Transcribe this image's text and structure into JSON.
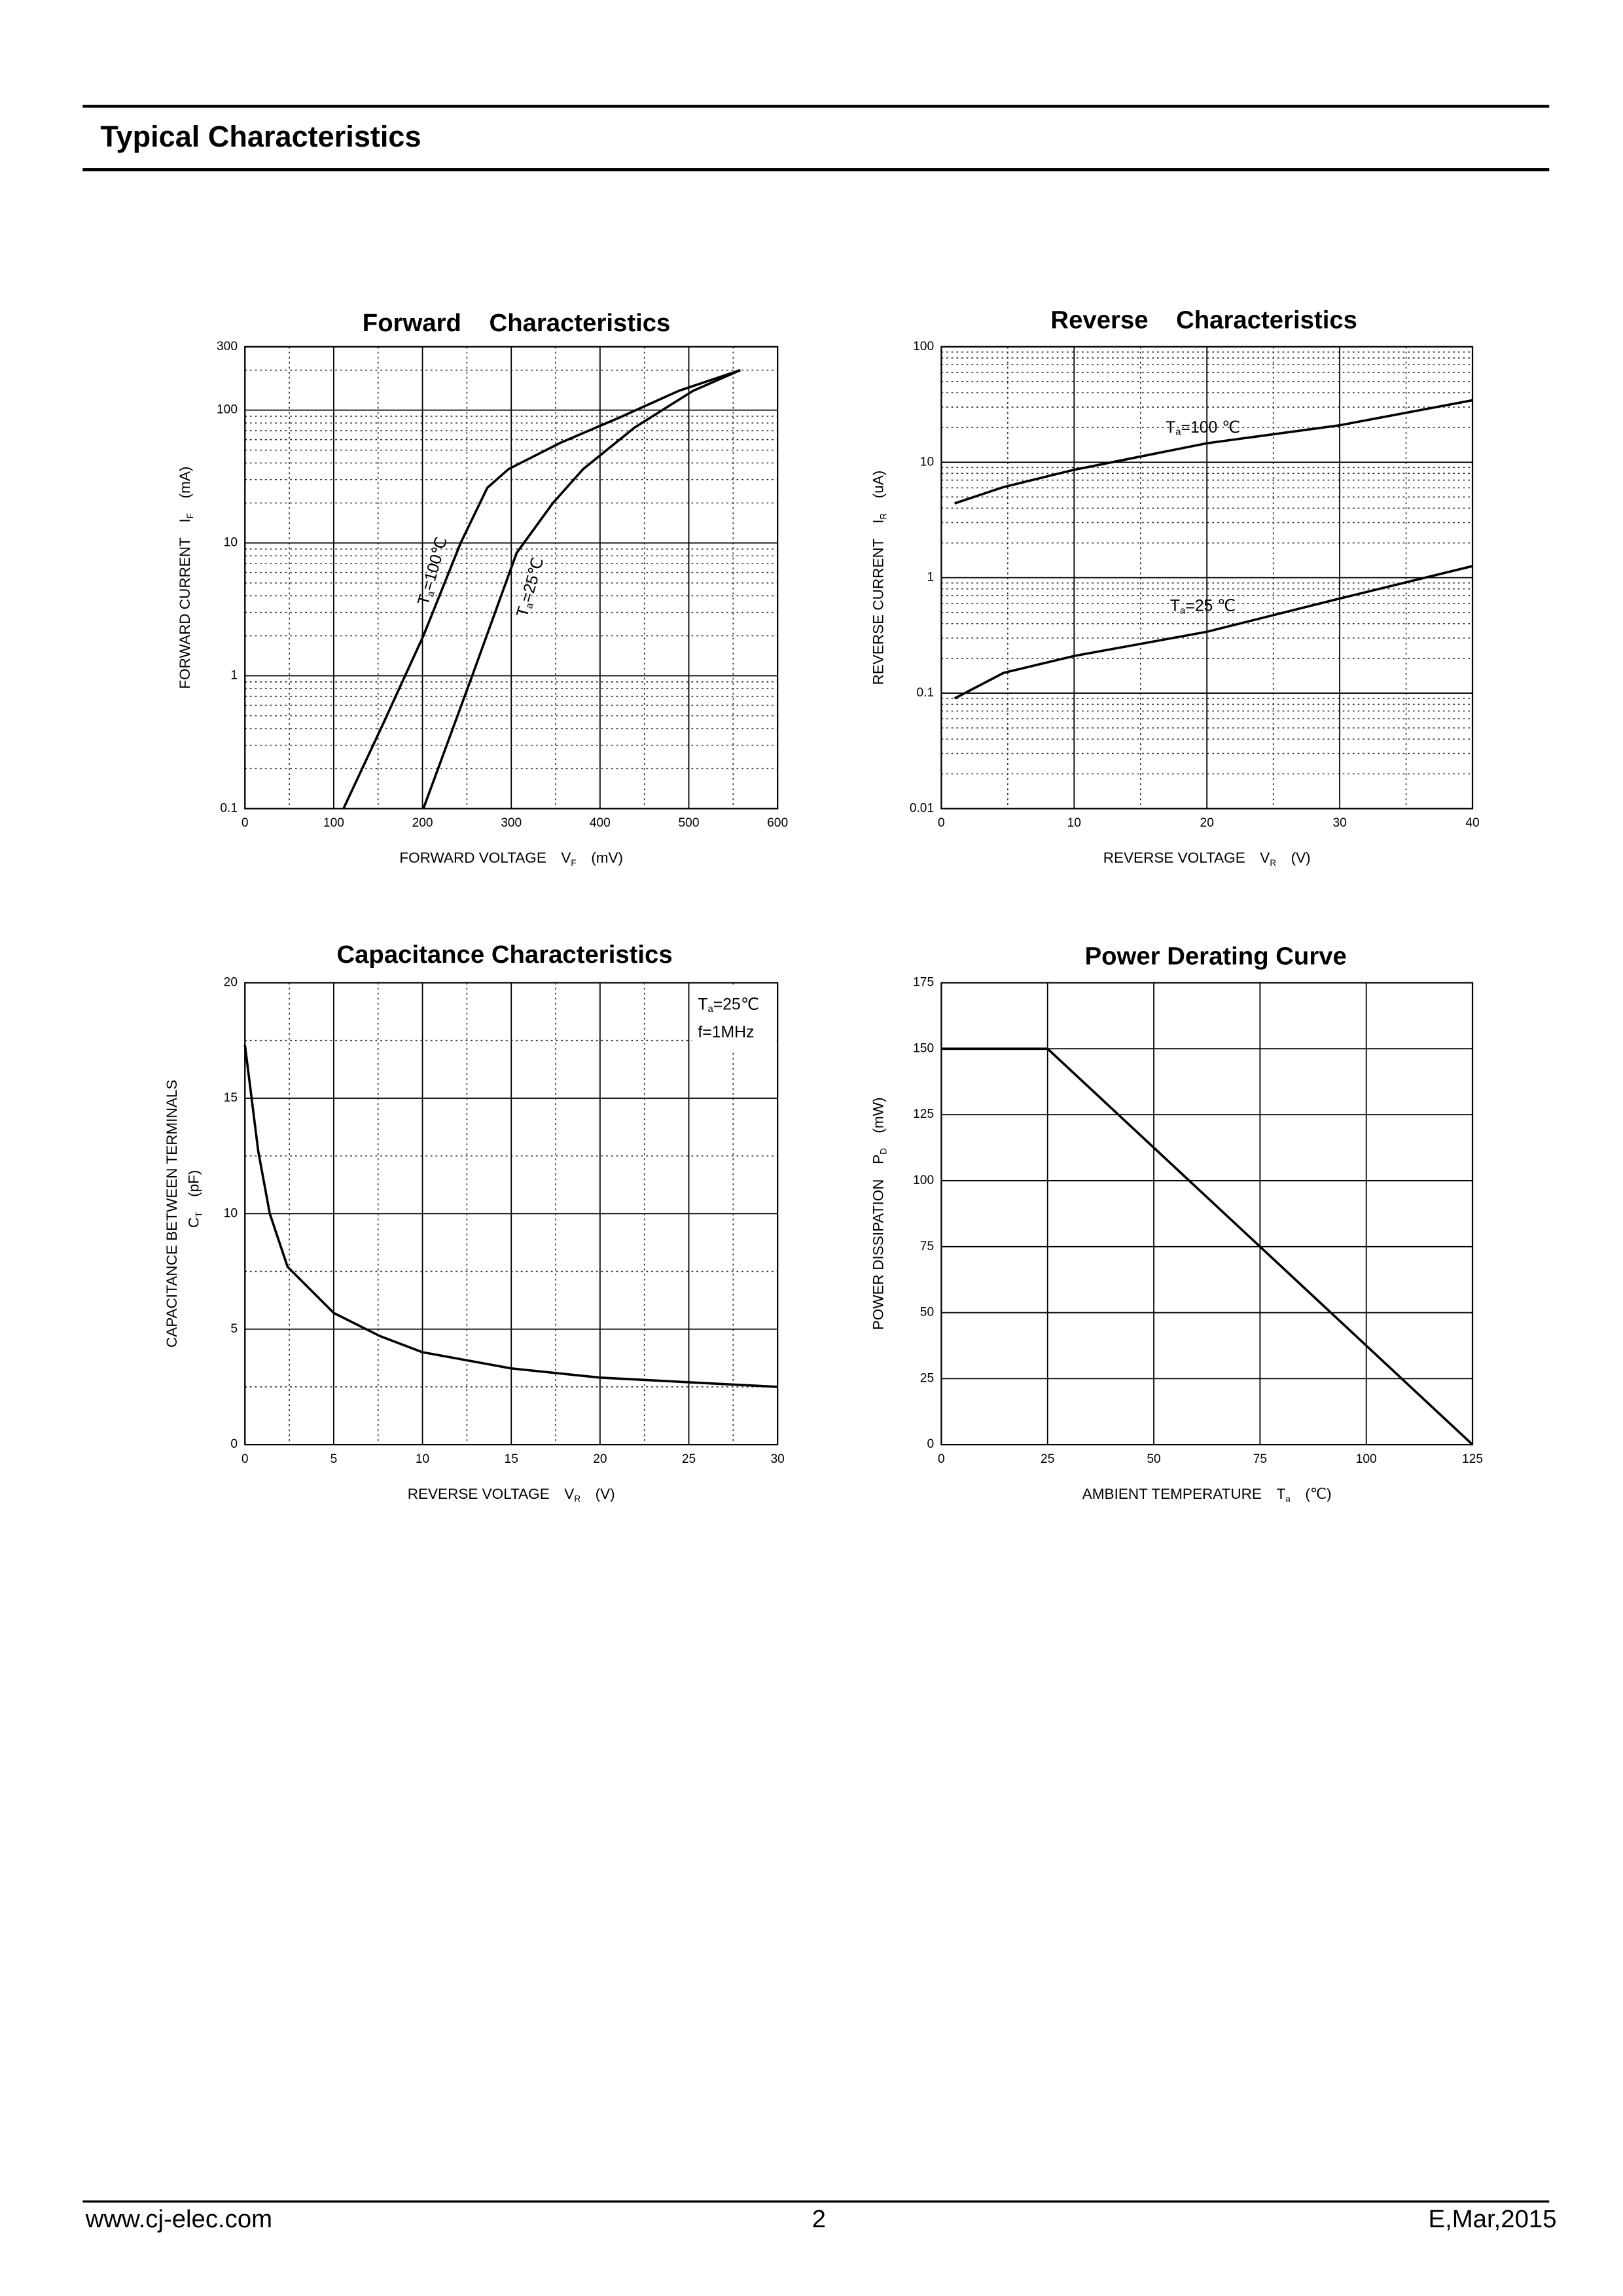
{
  "header": {
    "title": "Typical Characteristics"
  },
  "chart_data": [
    {
      "type": "line",
      "title": "Forward    Characteristics",
      "xlabel": {
        "text": "FORWARD VOLTAGE",
        "symbol": "V",
        "sub": "F",
        "unit": "(mV)"
      },
      "ylabel": {
        "text": "FORWARD CURRENT",
        "symbol": "I",
        "sub": "F",
        "unit": "(mA)"
      },
      "xlim": [
        0,
        600
      ],
      "xticks": [
        0,
        100,
        200,
        300,
        400,
        500,
        600
      ],
      "xminor": [
        50,
        150,
        250,
        350,
        450,
        550
      ],
      "ylim": [
        0.1,
        300
      ],
      "yscale": "log",
      "yticks": [
        0.1,
        1,
        10,
        100,
        300
      ],
      "yminor": [
        0.2,
        0.3,
        0.4,
        0.5,
        0.6,
        0.7,
        0.8,
        0.9,
        2,
        3,
        4,
        5,
        6,
        7,
        8,
        9,
        20,
        30,
        40,
        50,
        60,
        70,
        80,
        90,
        200
      ],
      "grid": true,
      "color": "#000000",
      "series": [
        {
          "x": [
            111,
            156,
            201,
            243,
            273,
            297,
            356,
            422,
            489,
            558
          ],
          "values": [
            0.1,
            0.44,
            2.0,
            10,
            26,
            36,
            57,
            88,
            140,
            200
          ]
        },
        {
          "x": [
            201,
            256,
            306,
            347,
            381,
            439,
            505,
            558
          ],
          "values": [
            0.1,
            1.0,
            8.4,
            20,
            36,
            74,
            140,
            200
          ]
        }
      ],
      "annotations": [
        {
          "text": "T",
          "sub": "a",
          "suffix": "=100℃"
        },
        {
          "text": "T",
          "sub": "a",
          "suffix": "=25℃"
        }
      ]
    },
    {
      "type": "line",
      "title": "Reverse    Characteristics",
      "xlabel": {
        "text": "REVERSE VOLTAGE",
        "symbol": "V",
        "sub": "R",
        "unit": "(V)"
      },
      "ylabel": {
        "text": "REVERSE CURRENT",
        "symbol": "I",
        "sub": "R",
        "unit": "(uA)"
      },
      "xlim": [
        0,
        40
      ],
      "xticks": [
        0,
        10,
        20,
        30,
        40
      ],
      "xminor": [
        5,
        15,
        25,
        35
      ],
      "ylim": [
        0.01,
        100
      ],
      "yscale": "log",
      "yticks": [
        0.01,
        0.1,
        1,
        10,
        100
      ],
      "yminor": [
        0.02,
        0.03,
        0.04,
        0.05,
        0.06,
        0.07,
        0.08,
        0.09,
        0.2,
        0.3,
        0.4,
        0.5,
        0.6,
        0.7,
        0.8,
        0.9,
        2,
        3,
        4,
        5,
        6,
        7,
        8,
        9,
        20,
        30,
        40,
        50,
        60,
        70,
        80,
        90
      ],
      "grid": true,
      "color": "#000000",
      "series": [
        {
          "x": [
            1,
            4.7,
            10,
            20,
            30,
            40
          ],
          "values": [
            4.4,
            6.1,
            8.6,
            14.6,
            20.9,
            34.4
          ]
        },
        {
          "x": [
            1,
            4.7,
            10,
            20,
            30,
            40
          ],
          "values": [
            0.09,
            0.15,
            0.21,
            0.34,
            0.66,
            1.26
          ]
        }
      ],
      "annotations": [
        {
          "text": "T",
          "sub": "a",
          "suffix": "=100 ℃"
        },
        {
          "text": "T",
          "sub": "a",
          "suffix": "=25 ℃"
        }
      ]
    },
    {
      "type": "line",
      "title": "Capacitance Characteristics",
      "xlabel": {
        "text": "REVERSE VOLTAGE",
        "symbol": "V",
        "sub": "R",
        "unit": "(V)"
      },
      "ylabel": {
        "text": "CAPACITANCE BETWEEN TERMINALS",
        "symbol": "C",
        "sub": "T",
        "unit": "(pF)"
      },
      "xlim": [
        0,
        30
      ],
      "xticks": [
        0,
        5,
        10,
        15,
        20,
        25,
        30
      ],
      "xminor": [
        2.5,
        7.5,
        12.5,
        17.5,
        22.5,
        27.5
      ],
      "ylim": [
        0,
        20
      ],
      "yticks": [
        0,
        5,
        10,
        15,
        20
      ],
      "yminor": [
        2.5,
        7.5,
        12.5,
        17.5
      ],
      "grid": true,
      "color": "#000000",
      "series": [
        {
          "x": [
            0,
            0.75,
            1.4,
            2.4,
            5,
            7.6,
            10,
            15,
            20,
            25,
            30
          ],
          "values": [
            17.3,
            12.7,
            10.0,
            7.7,
            5.7,
            4.7,
            4.0,
            3.3,
            2.9,
            2.7,
            2.5
          ]
        }
      ],
      "annotations": [
        {
          "text": "T",
          "sub": "a",
          "suffix": "=25℃"
        },
        {
          "text": "f=1MHz"
        }
      ]
    },
    {
      "type": "line",
      "title": "Power Derating Curve",
      "xlabel": {
        "text": "AMBIENT TEMPERATURE",
        "symbol": "T",
        "sub": "a",
        "unit": "(℃)"
      },
      "ylabel": {
        "text": "POWER DISSIPATION",
        "symbol": "P",
        "sub": "D",
        "unit": "(mW)"
      },
      "xlim": [
        0,
        125
      ],
      "xticks": [
        0,
        25,
        50,
        75,
        100,
        125
      ],
      "ylim": [
        0,
        175
      ],
      "yticks": [
        0,
        25,
        50,
        75,
        100,
        125,
        150,
        175
      ],
      "grid": true,
      "color": "#000000",
      "series": [
        {
          "x": [
            0,
            25,
            125
          ],
          "values": [
            150,
            150,
            0
          ]
        }
      ]
    }
  ],
  "footer": {
    "url": "www.cj-elec.com",
    "page": "2",
    "revision": "E,Mar,2015"
  }
}
